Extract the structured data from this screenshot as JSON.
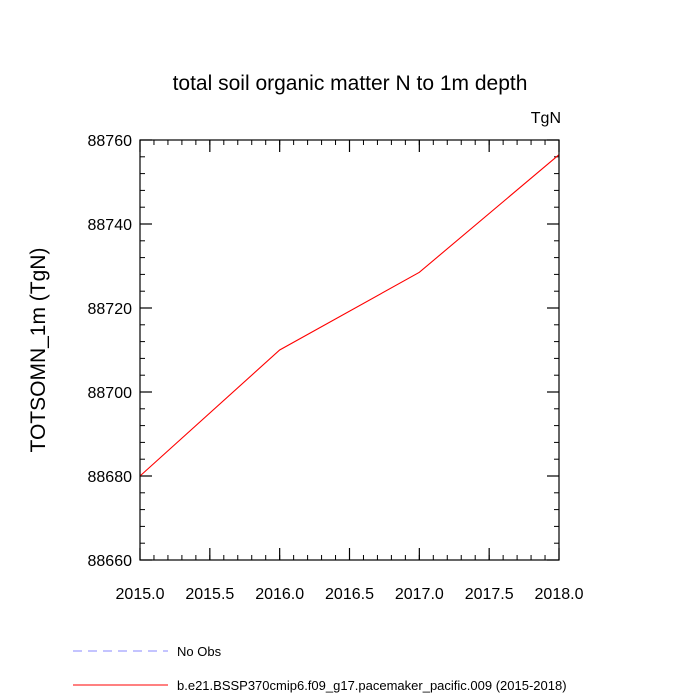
{
  "chart_data": {
    "type": "line",
    "title": "total soil organic matter N to 1m depth",
    "units_label": "TgN",
    "ylabel": "TOTSOMN_1m  (TgN)",
    "xlabel": "",
    "xlim": [
      2015.0,
      2018.0
    ],
    "ylim": [
      88660,
      88760
    ],
    "x_ticks": [
      "2015.0",
      "2015.5",
      "2016.0",
      "2016.5",
      "2017.0",
      "2017.5",
      "2018.0"
    ],
    "y_ticks": [
      "88660",
      "88680",
      "88700",
      "88720",
      "88740",
      "88760"
    ],
    "grid": false,
    "legend_placement": "bottom-left",
    "series": [
      {
        "name": "b.e21.BSSP370cmip6.f09_g17.pacemaker_pacific.009 (2015-2018)",
        "color": "#ff0000",
        "x": [
          2015.0,
          2016.0,
          2017.0,
          2018.0
        ],
        "y": [
          88680,
          88710,
          88728.5,
          88756.5
        ]
      }
    ],
    "legend": [
      {
        "label": "No Obs",
        "color": "#8888ff",
        "style": "dashed"
      },
      {
        "label": "b.e21.BSSP370cmip6.f09_g17.pacemaker_pacific.009 (2015-2018)",
        "color": "#ff0000",
        "style": "solid"
      }
    ]
  }
}
